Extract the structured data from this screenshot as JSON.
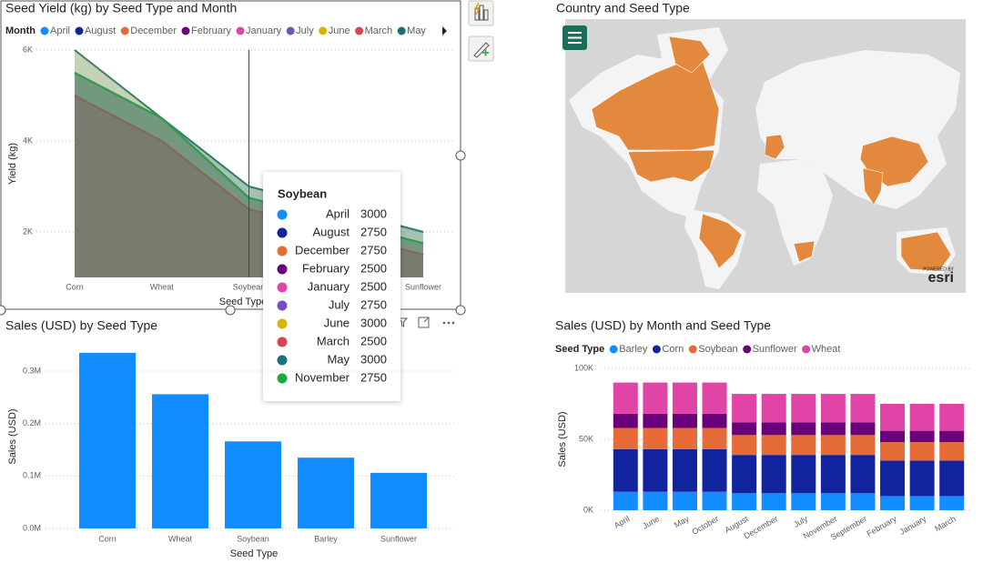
{
  "chart_data": [
    {
      "type": "area",
      "title": "Seed Yield (kg) by Seed Type and Month",
      "legend_title": "Month",
      "x_label": "Seed Type",
      "y_label": "Yield (kg)",
      "categories": [
        "Corn",
        "Wheat",
        "Soybean",
        "Barley",
        "Sunflower"
      ],
      "series": [
        {
          "name": "April",
          "color": "#118dff",
          "values": [
            5500,
            4500,
            3000,
            2500,
            2000
          ]
        },
        {
          "name": "August",
          "color": "#12239e",
          "values": [
            5500,
            4500,
            2750,
            2250,
            1750
          ]
        },
        {
          "name": "December",
          "color": "#e66c37",
          "values": [
            5500,
            4500,
            2750,
            2250,
            1750
          ]
        },
        {
          "name": "February",
          "color": "#6b007b",
          "values": [
            5000,
            4000,
            2500,
            2000,
            1500
          ]
        },
        {
          "name": "January",
          "color": "#e044a7",
          "values": [
            5000,
            4000,
            2500,
            2000,
            1500
          ]
        },
        {
          "name": "July",
          "color": "#744ec2",
          "values": [
            5500,
            4500,
            2750,
            2250,
            1750
          ]
        },
        {
          "name": "June",
          "color": "#d9b300",
          "values": [
            6000,
            4500,
            3000,
            2500,
            2000
          ]
        },
        {
          "name": "March",
          "color": "#d64550",
          "values": [
            5000,
            4000,
            2500,
            2000,
            1500
          ]
        },
        {
          "name": "May",
          "color": "#197278",
          "values": [
            6000,
            4500,
            3000,
            2500,
            2000
          ]
        },
        {
          "name": "November",
          "color": "#1aab40",
          "values": [
            5500,
            4500,
            2750,
            2250,
            1750
          ]
        }
      ],
      "ylim": [
        1000,
        6000
      ],
      "yticks": [
        {
          "value": 2000,
          "label": "2K"
        },
        {
          "value": 4000,
          "label": "4K"
        },
        {
          "value": 6000,
          "label": "6K"
        }
      ],
      "grid": true
    },
    {
      "type": "bar",
      "title": "Sales (USD) by Seed Type",
      "x_label": "Seed Type",
      "y_label": "Sales (USD)",
      "categories": [
        "Corn",
        "Wheat",
        "Soybean",
        "Barley",
        "Sunflower"
      ],
      "values": [
        335000,
        256000,
        166000,
        135000,
        106000
      ],
      "color": "#118dff",
      "ylim": [
        0,
        340000
      ],
      "yticks": [
        {
          "value": 0,
          "label": "0.0M"
        },
        {
          "value": 100000,
          "label": "0.1M"
        },
        {
          "value": 200000,
          "label": "0.2M"
        },
        {
          "value": 300000,
          "label": "0.3M"
        }
      ],
      "grid": true
    },
    {
      "type": "stacked_bar",
      "title": "Sales (USD) by Month and Seed Type",
      "legend_title": "Seed Type",
      "y_label": "Sales (USD)",
      "categories": [
        "April",
        "June",
        "May",
        "October",
        "August",
        "December",
        "July",
        "November",
        "September",
        "February",
        "January",
        "March"
      ],
      "series": [
        {
          "name": "Barley",
          "color": "#118dff",
          "values": [
            13000,
            13000,
            13000,
            13000,
            12000,
            12000,
            12000,
            12000,
            12000,
            10000,
            10000,
            10000
          ]
        },
        {
          "name": "Corn",
          "color": "#12239e",
          "values": [
            30000,
            30000,
            30000,
            30000,
            27000,
            27000,
            27000,
            27000,
            27000,
            25000,
            25000,
            25000
          ]
        },
        {
          "name": "Soybean",
          "color": "#e66c37",
          "values": [
            15000,
            15000,
            15000,
            15000,
            14000,
            14000,
            14000,
            14000,
            14000,
            13000,
            13000,
            13000
          ]
        },
        {
          "name": "Sunflower",
          "color": "#6b007b",
          "values": [
            10000,
            10000,
            10000,
            10000,
            9000,
            9000,
            9000,
            9000,
            9000,
            8000,
            8000,
            8000
          ]
        },
        {
          "name": "Wheat",
          "color": "#e044a7",
          "values": [
            22000,
            22000,
            22000,
            22000,
            20000,
            20000,
            20000,
            20000,
            20000,
            19000,
            19000,
            19000
          ]
        }
      ],
      "ylim": [
        0,
        100000
      ],
      "yticks": [
        {
          "value": 0,
          "label": "0K"
        },
        {
          "value": 50000,
          "label": "50K"
        },
        {
          "value": 100000,
          "label": "100K"
        }
      ],
      "grid": true
    }
  ],
  "map": {
    "title": "Country and Seed Type",
    "attribution": "POWERED BY",
    "logo": "esri"
  }
}
